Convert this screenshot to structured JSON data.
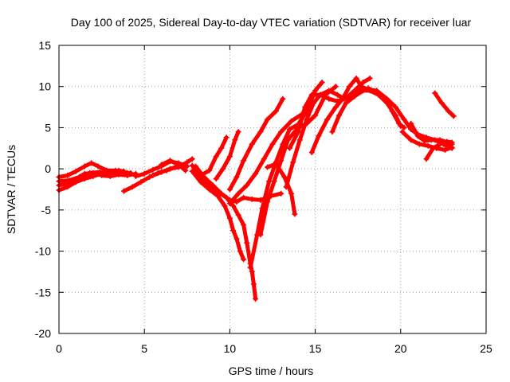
{
  "chart_data": {
    "type": "scatter",
    "title": "Day 100 of 2025, Sidereal Day-to-day VTEC variation (SDTVAR) for receiver luar",
    "xlabel": "GPS time / hours",
    "ylabel": "SDTVAR / TECUs",
    "xlim": [
      0,
      25
    ],
    "ylim": [
      -20,
      15
    ],
    "xticks": [
      0,
      5,
      10,
      15,
      20,
      25
    ],
    "yticks": [
      -20,
      -15,
      -10,
      -5,
      0,
      5,
      10,
      15
    ],
    "x_tick_labels": [
      "0",
      "5",
      "10",
      "15",
      "20",
      "25"
    ],
    "y_tick_labels": [
      "-20",
      "-15",
      "-10",
      "-5",
      "0",
      "5",
      "10",
      "15"
    ],
    "grid": true,
    "marker": "+",
    "series_color": "#ff0000",
    "series": [
      {
        "points": [
          [
            0.0,
            -2.0
          ],
          [
            0.5,
            -1.8
          ],
          [
            1.0,
            -1.2
          ],
          [
            1.5,
            -0.6
          ],
          [
            2.0,
            -0.5
          ],
          [
            2.5,
            -0.8
          ],
          [
            3.0,
            -0.9
          ],
          [
            3.5,
            -0.7
          ],
          [
            4.0,
            -0.8
          ],
          [
            4.5,
            -0.6
          ]
        ]
      },
      {
        "points": [
          [
            0.0,
            -1.0
          ],
          [
            0.5,
            -0.8
          ],
          [
            1.0,
            -0.3
          ],
          [
            1.5,
            0.3
          ],
          [
            1.9,
            0.7
          ],
          [
            2.3,
            0.3
          ],
          [
            2.8,
            -0.2
          ],
          [
            3.3,
            -0.2
          ],
          [
            3.8,
            -0.3
          ]
        ]
      },
      {
        "points": [
          [
            0.0,
            -2.6
          ],
          [
            0.5,
            -2.2
          ],
          [
            1.0,
            -1.6
          ],
          [
            1.5,
            -1.2
          ],
          [
            2.0,
            -0.9
          ],
          [
            2.5,
            -0.6
          ],
          [
            3.0,
            -0.4
          ],
          [
            3.5,
            -0.2
          ],
          [
            4.0,
            -0.5
          ]
        ]
      },
      {
        "points": [
          [
            0.0,
            -1.5
          ],
          [
            0.6,
            -1.4
          ],
          [
            1.2,
            -1.0
          ],
          [
            1.8,
            -0.5
          ],
          [
            2.4,
            -0.4
          ],
          [
            3.0,
            -0.6
          ],
          [
            3.6,
            -0.6
          ],
          [
            4.2,
            -0.5
          ]
        ]
      },
      {
        "points": [
          [
            3.8,
            -2.7
          ],
          [
            4.3,
            -2.2
          ],
          [
            4.8,
            -1.6
          ],
          [
            5.3,
            -1.0
          ],
          [
            5.8,
            -0.5
          ],
          [
            6.3,
            -0.2
          ],
          [
            6.8,
            0.2
          ]
        ]
      },
      {
        "points": [
          [
            4.5,
            -0.9
          ],
          [
            5.0,
            -0.6
          ],
          [
            5.5,
            -0.1
          ],
          [
            6.0,
            0.3
          ],
          [
            6.5,
            0.9
          ],
          [
            7.0,
            0.7
          ],
          [
            7.5,
            0.3
          ]
        ]
      },
      {
        "points": [
          [
            5.5,
            -0.8
          ],
          [
            6.0,
            -0.4
          ],
          [
            6.5,
            0.0
          ],
          [
            7.0,
            0.2
          ],
          [
            7.5,
            0.8
          ],
          [
            7.8,
            1.2
          ]
        ]
      },
      {
        "points": [
          [
            6.0,
            0.5
          ],
          [
            6.5,
            1.0
          ],
          [
            7.0,
            0.5
          ],
          [
            7.4,
            -0.2
          ]
        ]
      },
      {
        "points": [
          [
            7.8,
            0.4
          ],
          [
            8.3,
            -1.0
          ],
          [
            8.8,
            -2.0
          ],
          [
            9.3,
            -2.8
          ],
          [
            9.8,
            -3.5
          ],
          [
            10.2,
            -4.5
          ],
          [
            10.5,
            -5.6
          ],
          [
            10.8,
            -6.8
          ],
          [
            11.0,
            -9.0
          ],
          [
            11.2,
            -11.5
          ],
          [
            11.3,
            -12.5
          ],
          [
            11.4,
            -14.0
          ],
          [
            11.5,
            -15.8
          ]
        ]
      },
      {
        "points": [
          [
            7.8,
            -0.3
          ],
          [
            8.3,
            -1.6
          ],
          [
            8.8,
            -2.5
          ],
          [
            9.3,
            -3.3
          ],
          [
            9.7,
            -4.5
          ],
          [
            10.0,
            -6.0
          ],
          [
            10.2,
            -7.5
          ],
          [
            10.4,
            -8.5
          ],
          [
            10.6,
            -10.0
          ],
          [
            10.8,
            -11.0
          ]
        ]
      },
      {
        "points": [
          [
            8.0,
            0.3
          ],
          [
            8.5,
            -1.0
          ],
          [
            9.0,
            -2.0
          ],
          [
            9.5,
            -3.0
          ],
          [
            10.0,
            -3.8
          ],
          [
            10.4,
            -4.0
          ],
          [
            10.8,
            -3.5
          ],
          [
            11.3,
            -3.7
          ],
          [
            11.8,
            -3.8
          ],
          [
            12.4,
            -3.3
          ],
          [
            13.0,
            -3.0
          ]
        ]
      },
      {
        "points": [
          [
            8.3,
            -0.8
          ],
          [
            8.8,
            -0.2
          ],
          [
            9.2,
            1.5
          ],
          [
            9.5,
            2.5
          ],
          [
            9.8,
            3.8
          ]
        ]
      },
      {
        "points": [
          [
            9.2,
            -1.2
          ],
          [
            9.6,
            0.0
          ],
          [
            10.0,
            1.5
          ],
          [
            10.3,
            3.5
          ],
          [
            10.5,
            4.5
          ]
        ]
      },
      {
        "points": [
          [
            10.0,
            -2.5
          ],
          [
            10.4,
            -1.0
          ],
          [
            10.8,
            1.0
          ],
          [
            11.3,
            3.0
          ],
          [
            11.8,
            4.5
          ],
          [
            12.2,
            6.0
          ],
          [
            12.7,
            7.0
          ],
          [
            13.1,
            8.5
          ]
        ]
      },
      {
        "points": [
          [
            10.0,
            -4.2
          ],
          [
            10.5,
            -3.0
          ],
          [
            11.0,
            -2.0
          ],
          [
            11.5,
            -0.6
          ],
          [
            12.0,
            1.2
          ],
          [
            12.5,
            3.0
          ],
          [
            13.0,
            4.5
          ],
          [
            13.6,
            5.8
          ],
          [
            14.2,
            6.6
          ]
        ]
      },
      {
        "points": [
          [
            11.2,
            -12.0
          ],
          [
            11.6,
            -8.0
          ],
          [
            11.9,
            -4.8
          ],
          [
            12.3,
            -1.5
          ],
          [
            12.7,
            0.8
          ],
          [
            13.1,
            3.0
          ],
          [
            13.5,
            4.8
          ],
          [
            14.0,
            5.4
          ],
          [
            14.5,
            7.0
          ],
          [
            15.0,
            9.5
          ],
          [
            15.4,
            10.5
          ]
        ]
      },
      {
        "points": [
          [
            11.8,
            -8.0
          ],
          [
            12.2,
            -4.0
          ],
          [
            12.6,
            -1.5
          ],
          [
            13.0,
            1.0
          ],
          [
            13.4,
            3.5
          ],
          [
            14.0,
            5.0
          ],
          [
            14.5,
            5.5
          ],
          [
            15.0,
            6.5
          ],
          [
            15.6,
            9.0
          ],
          [
            16.2,
            10.0
          ]
        ]
      },
      {
        "points": [
          [
            12.2,
            0.2
          ],
          [
            12.7,
            0.6
          ],
          [
            13.2,
            -1.0
          ],
          [
            13.6,
            -3.0
          ],
          [
            13.8,
            -5.5
          ]
        ]
      },
      {
        "points": [
          [
            13.3,
            -2.2
          ],
          [
            13.7,
            0.8
          ],
          [
            14.1,
            3.5
          ],
          [
            14.5,
            6.0
          ],
          [
            14.9,
            8.0
          ],
          [
            15.3,
            9.0
          ],
          [
            15.8,
            9.5
          ],
          [
            16.3,
            9.0
          ],
          [
            16.7,
            8.5
          ],
          [
            17.1,
            9.0
          ],
          [
            17.6,
            9.5
          ],
          [
            18.1,
            9.8
          ],
          [
            18.6,
            9.3
          ],
          [
            19.1,
            8.5
          ],
          [
            19.5,
            7.0
          ],
          [
            19.9,
            5.5
          ],
          [
            20.2,
            5.0
          ]
        ]
      },
      {
        "points": [
          [
            13.5,
            2.5
          ],
          [
            14.0,
            4.5
          ],
          [
            14.4,
            7.5
          ],
          [
            14.8,
            9.0
          ],
          [
            15.3,
            9.0
          ],
          [
            15.8,
            8.5
          ],
          [
            16.3,
            8.2
          ],
          [
            16.8,
            8.6
          ],
          [
            17.3,
            9.5
          ],
          [
            17.8,
            10.5
          ],
          [
            18.2,
            11.0
          ]
        ]
      },
      {
        "points": [
          [
            14.8,
            2.0
          ],
          [
            15.2,
            4.0
          ],
          [
            15.7,
            6.0
          ],
          [
            16.2,
            7.5
          ],
          [
            16.6,
            8.5
          ],
          [
            17.0,
            10.0
          ],
          [
            17.4,
            11.0
          ],
          [
            17.7,
            10.0
          ],
          [
            18.1,
            9.6
          ],
          [
            18.6,
            9.5
          ],
          [
            19.2,
            8.5
          ],
          [
            19.7,
            7.5
          ],
          [
            20.2,
            6.0
          ],
          [
            20.6,
            4.8
          ],
          [
            21.0,
            4.2
          ],
          [
            21.5,
            3.8
          ],
          [
            22.0,
            3.5
          ],
          [
            22.5,
            3.0
          ],
          [
            23.0,
            2.5
          ]
        ]
      },
      {
        "points": [
          [
            16.0,
            4.5
          ],
          [
            16.4,
            6.5
          ],
          [
            16.8,
            8.0
          ],
          [
            17.3,
            8.8
          ],
          [
            17.8,
            9.5
          ],
          [
            18.2,
            9.5
          ],
          [
            18.7,
            9.0
          ],
          [
            19.2,
            8.0
          ],
          [
            19.7,
            6.5
          ],
          [
            20.0,
            5.2
          ]
        ]
      },
      {
        "points": [
          [
            20.1,
            4.5
          ],
          [
            20.6,
            3.5
          ],
          [
            21.1,
            3.0
          ],
          [
            21.6,
            2.8
          ],
          [
            22.1,
            2.5
          ],
          [
            22.6,
            2.3
          ],
          [
            23.0,
            2.6
          ]
        ]
      },
      {
        "points": [
          [
            20.6,
            5.5
          ],
          [
            21.0,
            4.0
          ],
          [
            21.4,
            3.4
          ],
          [
            21.8,
            3.5
          ],
          [
            22.3,
            3.5
          ],
          [
            22.8,
            3.2
          ],
          [
            23.0,
            3.0
          ]
        ]
      },
      {
        "points": [
          [
            21.5,
            1.2
          ],
          [
            21.9,
            2.5
          ],
          [
            22.3,
            3.0
          ],
          [
            22.7,
            3.3
          ],
          [
            23.0,
            3.2
          ]
        ]
      },
      {
        "points": [
          [
            22.0,
            9.2
          ],
          [
            22.4,
            8.0
          ],
          [
            22.8,
            7.0
          ],
          [
            23.1,
            6.4
          ]
        ]
      }
    ]
  }
}
